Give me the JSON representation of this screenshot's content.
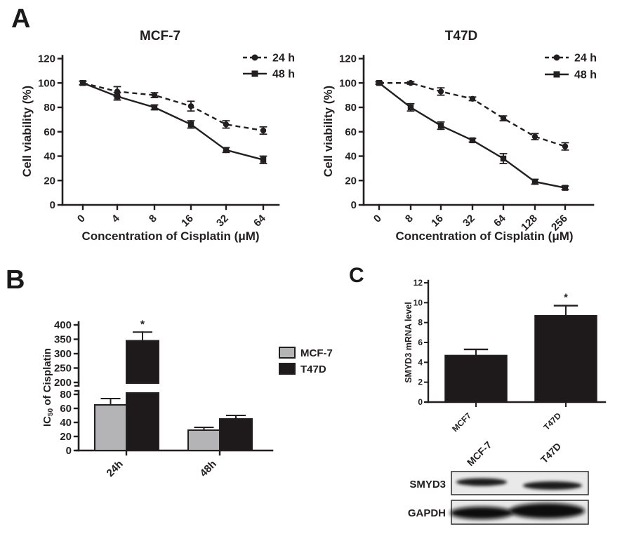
{
  "panels": {
    "a_label": "A",
    "b_label": "B",
    "c_label": "C"
  },
  "colors": {
    "ink": "#231f20",
    "gray_bar": "#b4b4b6",
    "black_bar": "#1e1a1b",
    "blot_bg": "#e9e9e9",
    "background": "#ffffff"
  },
  "chart_data": [
    {
      "id": "mcf7_viability",
      "type": "line",
      "title": "MCF-7",
      "xlabel": "Concentration of Cisplatin (μM)",
      "ylabel": "Cell viability (%)",
      "categories": [
        "0",
        "4",
        "8",
        "16",
        "32",
        "64"
      ],
      "ylim": [
        0,
        120
      ],
      "yticks": [
        0,
        20,
        40,
        60,
        80,
        100,
        120
      ],
      "grid": false,
      "legend_position": "top-right",
      "series": [
        {
          "name": "24 h",
          "style": "dashed",
          "marker": "circle",
          "values": [
            100,
            93,
            90,
            81,
            66,
            61
          ],
          "errors": [
            1.5,
            4,
            2,
            4,
            3,
            3
          ]
        },
        {
          "name": "48 h",
          "style": "solid",
          "marker": "square",
          "values": [
            100,
            89,
            80,
            66,
            45,
            37
          ],
          "errors": [
            1.5,
            3,
            2,
            3,
            2,
            3
          ]
        }
      ]
    },
    {
      "id": "t47d_viability",
      "type": "line",
      "title": "T47D",
      "xlabel": "Concentration of Cisplatin (μM)",
      "ylabel": "Cell viability (%)",
      "categories": [
        "0",
        "8",
        "16",
        "32",
        "64",
        "128",
        "256"
      ],
      "ylim": [
        0,
        120
      ],
      "yticks": [
        0,
        20,
        40,
        60,
        80,
        100,
        120
      ],
      "grid": false,
      "legend_position": "top-right",
      "series": [
        {
          "name": "24 h",
          "style": "dashed",
          "marker": "circle",
          "values": [
            100,
            100,
            93,
            87,
            71,
            56,
            48
          ],
          "errors": [
            1,
            1,
            3,
            1.5,
            2,
            2.5,
            3
          ]
        },
        {
          "name": "48 h",
          "style": "solid",
          "marker": "square",
          "values": [
            100,
            80,
            65,
            53,
            38,
            19,
            14
          ],
          "errors": [
            1,
            3,
            3,
            1.5,
            4,
            2,
            1.5
          ]
        }
      ]
    },
    {
      "id": "ic50_cisplatin",
      "type": "bar",
      "title": "",
      "ylabel": "IC50 of Cisplatin",
      "ylabel_parts": [
        {
          "text": "IC"
        },
        {
          "text": "50",
          "sub": true
        },
        {
          "text": " of Cisplatin"
        }
      ],
      "categories": [
        "24h",
        "48h"
      ],
      "broken_axis": {
        "lower": [
          0,
          80
        ],
        "lower_ticks": [
          0,
          20,
          40,
          60,
          80
        ],
        "upper": [
          200,
          400
        ],
        "upper_ticks": [
          200,
          250,
          300,
          350,
          400
        ]
      },
      "series": [
        {
          "name": "MCF-7",
          "color": "#b4b4b6",
          "values": [
            65,
            29
          ],
          "errors": [
            9,
            4
          ]
        },
        {
          "name": "T47D",
          "color": "#1e1a1b",
          "values": [
            345,
            45
          ],
          "errors": [
            30,
            5
          ]
        }
      ],
      "annotations": [
        {
          "text": "*",
          "series": "T47D",
          "category": "24h"
        }
      ]
    },
    {
      "id": "smyd3_mrna",
      "type": "bar",
      "title": "",
      "ylabel": "SMYD3 mRNA level",
      "categories": [
        "MCF7",
        "T47D"
      ],
      "values": [
        4.7,
        8.7
      ],
      "errors": [
        0.6,
        1.0
      ],
      "ylim": [
        0,
        12
      ],
      "yticks": [
        0,
        2,
        4,
        6,
        8,
        10,
        12
      ],
      "bar_color": "#1e1a1b",
      "annotations": [
        {
          "text": "*",
          "category": "T47D"
        }
      ]
    }
  ],
  "western_blot": {
    "col_labels": [
      "MCF-7",
      "T47D"
    ],
    "rows": [
      {
        "label": "SMYD3",
        "bands": [
          {
            "lane": "MCF-7",
            "intensity": "medium"
          },
          {
            "lane": "T47D",
            "intensity": "medium"
          }
        ]
      },
      {
        "label": "GAPDH",
        "bands": [
          {
            "lane": "MCF-7",
            "intensity": "strong"
          },
          {
            "lane": "T47D",
            "intensity": "strong"
          }
        ]
      }
    ]
  }
}
